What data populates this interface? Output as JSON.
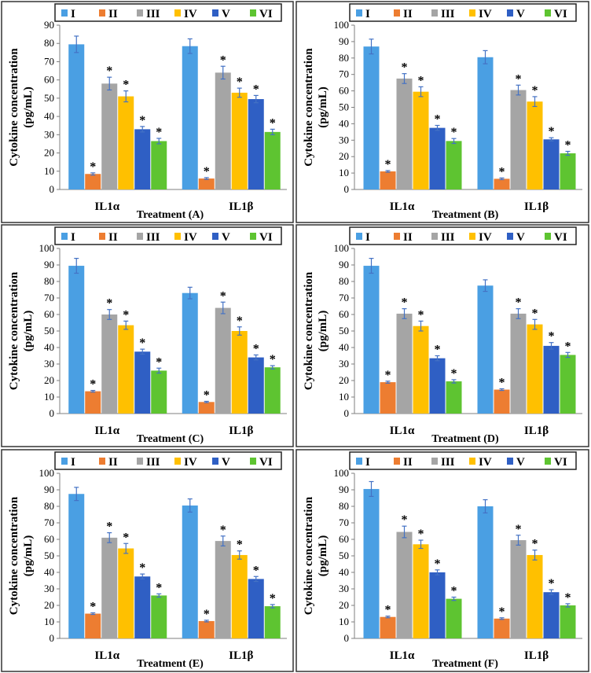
{
  "series_styles": [
    {
      "name": "I",
      "color": "#4a9fe3"
    },
    {
      "name": "II",
      "color": "#ed7d31"
    },
    {
      "name": "III",
      "color": "#a5a5a5"
    },
    {
      "name": "IV",
      "color": "#ffc000"
    },
    {
      "name": "V",
      "color": "#2f5fc4"
    },
    {
      "name": "VI",
      "color": "#5ec431"
    }
  ],
  "chart_data": [
    {
      "type": "bar",
      "title": "Treatment (A)",
      "xlabel": "Treatment (A)",
      "ylabel_lines": [
        "Cytokine concentration",
        "(pg/mL)"
      ],
      "categories": [
        "IL1α",
        "IL1β"
      ],
      "ylim": [
        0,
        90
      ],
      "yticks": [
        "0",
        "10",
        "20",
        "30",
        "40",
        "50",
        "60",
        "70",
        "80",
        "90"
      ],
      "series": [
        {
          "name": "I",
          "values": [
            79.5,
            78.5
          ],
          "errors": [
            4.5,
            4
          ],
          "sig": [
            false,
            false
          ]
        },
        {
          "name": "II",
          "values": [
            8.5,
            6
          ],
          "errors": [
            0.6,
            0.5
          ],
          "sig": [
            true,
            true
          ]
        },
        {
          "name": "III",
          "values": [
            58,
            64
          ],
          "errors": [
            3.5,
            3.5
          ],
          "sig": [
            true,
            true
          ]
        },
        {
          "name": "IV",
          "values": [
            51,
            53
          ],
          "errors": [
            3,
            2.5
          ],
          "sig": [
            true,
            true
          ]
        },
        {
          "name": "V",
          "values": [
            33,
            49.5
          ],
          "errors": [
            1.5,
            2
          ],
          "sig": [
            true,
            true
          ]
        },
        {
          "name": "VI",
          "values": [
            26.5,
            31.5
          ],
          "errors": [
            1.5,
            1.5
          ],
          "sig": [
            true,
            true
          ]
        }
      ]
    },
    {
      "type": "bar",
      "title": "Treatment (B)",
      "xlabel": "Treatment (B)",
      "ylabel_lines": [
        "Cytokine concentration",
        "(pg/mL)"
      ],
      "categories": [
        "IL1α",
        "IL1β"
      ],
      "ylim": [
        0,
        100
      ],
      "yticks": [
        "0",
        "10",
        "20",
        "30",
        "40",
        "50",
        "60",
        "70",
        "80",
        "90",
        "100"
      ],
      "series": [
        {
          "name": "I",
          "values": [
            87,
            80.5
          ],
          "errors": [
            4.5,
            4
          ],
          "sig": [
            false,
            false
          ]
        },
        {
          "name": "II",
          "values": [
            11,
            6.5
          ],
          "errors": [
            0.5,
            0.5
          ],
          "sig": [
            true,
            true
          ]
        },
        {
          "name": "III",
          "values": [
            67.5,
            60.5
          ],
          "errors": [
            3,
            3
          ],
          "sig": [
            true,
            true
          ]
        },
        {
          "name": "IV",
          "values": [
            59.5,
            53.5
          ],
          "errors": [
            3,
            3
          ],
          "sig": [
            true,
            true
          ]
        },
        {
          "name": "V",
          "values": [
            37.5,
            30.5
          ],
          "errors": [
            1.5,
            1
          ],
          "sig": [
            true,
            true
          ]
        },
        {
          "name": "VI",
          "values": [
            29.5,
            22
          ],
          "errors": [
            1.5,
            1.2
          ],
          "sig": [
            true,
            true
          ]
        }
      ]
    },
    {
      "type": "bar",
      "title": "Treatment (C)",
      "xlabel": "Treatment (C)",
      "ylabel_lines": [
        "Cytokine concentration",
        "(pg/mL)"
      ],
      "categories": [
        "IL1α",
        "IL1β"
      ],
      "ylim": [
        0,
        100
      ],
      "yticks": [
        "0",
        "10",
        "20",
        "30",
        "40",
        "50",
        "60",
        "70",
        "80",
        "90",
        "100"
      ],
      "series": [
        {
          "name": "I",
          "values": [
            89.5,
            73
          ],
          "errors": [
            4.5,
            3.5
          ],
          "sig": [
            false,
            false
          ]
        },
        {
          "name": "II",
          "values": [
            13.5,
            7
          ],
          "errors": [
            0.5,
            0.4
          ],
          "sig": [
            true,
            true
          ]
        },
        {
          "name": "III",
          "values": [
            60,
            64
          ],
          "errors": [
            3,
            3.5
          ],
          "sig": [
            true,
            true
          ]
        },
        {
          "name": "IV",
          "values": [
            53.5,
            50
          ],
          "errors": [
            2.5,
            2.5
          ],
          "sig": [
            true,
            true
          ]
        },
        {
          "name": "V",
          "values": [
            37.5,
            34
          ],
          "errors": [
            1.5,
            1.5
          ],
          "sig": [
            true,
            true
          ]
        },
        {
          "name": "VI",
          "values": [
            26,
            28
          ],
          "errors": [
            1.5,
            1
          ],
          "sig": [
            true,
            true
          ]
        }
      ]
    },
    {
      "type": "bar",
      "title": "Treatment (D)",
      "xlabel": "Treatment (D)",
      "ylabel_lines": [
        "Cytokine concentration",
        "(pg/mL)"
      ],
      "categories": [
        "IL1α",
        "IL1β"
      ],
      "ylim": [
        0,
        100
      ],
      "yticks": [
        "0",
        "10",
        "20",
        "30",
        "40",
        "50",
        "60",
        "70",
        "80",
        "90",
        "100"
      ],
      "series": [
        {
          "name": "I",
          "values": [
            89.5,
            77.5
          ],
          "errors": [
            4.5,
            3.5
          ],
          "sig": [
            false,
            false
          ]
        },
        {
          "name": "II",
          "values": [
            19,
            14.5
          ],
          "errors": [
            0.6,
            0.5
          ],
          "sig": [
            true,
            true
          ]
        },
        {
          "name": "III",
          "values": [
            60.5,
            60.5
          ],
          "errors": [
            3,
            3
          ],
          "sig": [
            true,
            true
          ]
        },
        {
          "name": "IV",
          "values": [
            53,
            54
          ],
          "errors": [
            3,
            3
          ],
          "sig": [
            true,
            true
          ]
        },
        {
          "name": "V",
          "values": [
            33.5,
            41
          ],
          "errors": [
            1.5,
            2
          ],
          "sig": [
            true,
            true
          ]
        },
        {
          "name": "VI",
          "values": [
            19.5,
            35.5
          ],
          "errors": [
            1,
            1.5
          ],
          "sig": [
            true,
            true
          ]
        }
      ]
    },
    {
      "type": "bar",
      "title": "Treatment (E)",
      "xlabel": "Treatment (E)",
      "ylabel_lines": [
        "Cytokine concentration",
        "(pg/mL)"
      ],
      "categories": [
        "IL1α",
        "IL1β"
      ],
      "ylim": [
        0,
        100
      ],
      "yticks": [
        "0",
        "10",
        "20",
        "30",
        "40",
        "50",
        "60",
        "70",
        "80",
        "90",
        "100"
      ],
      "series": [
        {
          "name": "I",
          "values": [
            87.5,
            80.5
          ],
          "errors": [
            4,
            4
          ],
          "sig": [
            false,
            false
          ]
        },
        {
          "name": "II",
          "values": [
            15,
            10.5
          ],
          "errors": [
            0.5,
            0.5
          ],
          "sig": [
            true,
            true
          ]
        },
        {
          "name": "III",
          "values": [
            61,
            59
          ],
          "errors": [
            3,
            3
          ],
          "sig": [
            true,
            true
          ]
        },
        {
          "name": "IV",
          "values": [
            54.5,
            50.5
          ],
          "errors": [
            3,
            2.5
          ],
          "sig": [
            true,
            true
          ]
        },
        {
          "name": "V",
          "values": [
            37.5,
            36
          ],
          "errors": [
            1.5,
            1.5
          ],
          "sig": [
            true,
            true
          ]
        },
        {
          "name": "VI",
          "values": [
            26,
            19.5
          ],
          "errors": [
            1,
            1
          ],
          "sig": [
            true,
            true
          ]
        }
      ]
    },
    {
      "type": "bar",
      "title": "Treatment (F)",
      "xlabel": "Treatment (F)",
      "ylabel_lines": [
        "Cytokine concentration",
        "(pg/mL)"
      ],
      "categories": [
        "IL1α",
        "IL1β"
      ],
      "ylim": [
        0,
        100
      ],
      "yticks": [
        "0",
        "10",
        "20",
        "30",
        "40",
        "50",
        "60",
        "70",
        "80",
        "90",
        "100"
      ],
      "series": [
        {
          "name": "I",
          "values": [
            90.5,
            80
          ],
          "errors": [
            4.5,
            4
          ],
          "sig": [
            false,
            false
          ]
        },
        {
          "name": "II",
          "values": [
            13,
            12
          ],
          "errors": [
            0.5,
            0.5
          ],
          "sig": [
            true,
            true
          ]
        },
        {
          "name": "III",
          "values": [
            64.5,
            59.5
          ],
          "errors": [
            3.5,
            3
          ],
          "sig": [
            true,
            true
          ]
        },
        {
          "name": "IV",
          "values": [
            57,
            50.5
          ],
          "errors": [
            2.5,
            3
          ],
          "sig": [
            true,
            true
          ]
        },
        {
          "name": "V",
          "values": [
            40,
            28
          ],
          "errors": [
            1.5,
            1.5
          ],
          "sig": [
            true,
            true
          ]
        },
        {
          "name": "VI",
          "values": [
            24,
            20
          ],
          "errors": [
            1,
            1
          ],
          "sig": [
            true,
            true
          ]
        }
      ]
    }
  ],
  "significance_marker": "*"
}
